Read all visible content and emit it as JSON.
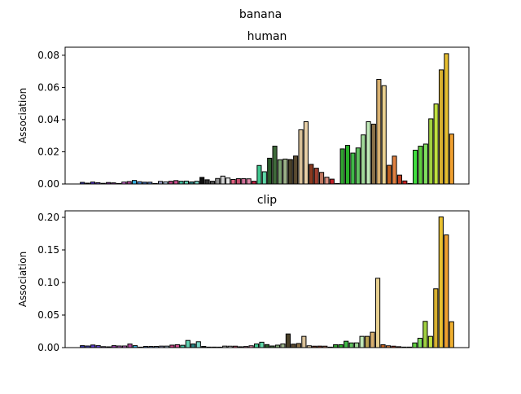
{
  "figure_title": "banana",
  "chart_data": [
    {
      "type": "bar",
      "title": "human",
      "xlabel": "",
      "ylabel": "Association",
      "ylim": [
        0,
        0.085
      ],
      "yticks": [
        0.0,
        0.02,
        0.04,
        0.06,
        0.08
      ],
      "ytick_labels": [
        "0.00",
        "0.02",
        "0.04",
        "0.06",
        "0.08"
      ],
      "x_tick_labels_visible": false,
      "values": [
        0.001,
        0.0005,
        0.0012,
        0.0008,
        0.0004,
        0.0009,
        0.0007,
        0.0003,
        0.0012,
        0.0015,
        0.0022,
        0.0014,
        0.0011,
        0.0011,
        0.0003,
        0.0016,
        0.0013,
        0.0017,
        0.0021,
        0.0017,
        0.0018,
        0.0013,
        0.0017,
        0.0041,
        0.0026,
        0.0017,
        0.0034,
        0.0049,
        0.0037,
        0.0028,
        0.0033,
        0.0033,
        0.0032,
        0.0017,
        0.0115,
        0.0076,
        0.016,
        0.0235,
        0.0151,
        0.0155,
        0.0152,
        0.0174,
        0.0337,
        0.0387,
        0.0122,
        0.0098,
        0.0072,
        0.0042,
        0.003,
        0.0,
        0.0218,
        0.024,
        0.0192,
        0.0224,
        0.0305,
        0.0387,
        0.0372,
        0.065,
        0.0611,
        0.0116,
        0.0173,
        0.0055,
        0.0019,
        0.0,
        0.021,
        0.0235,
        0.0248,
        0.0405,
        0.0497,
        0.0709,
        0.081,
        0.031
      ],
      "colors": [
        "#3a3ab5",
        "#4a4ac8",
        "#5a3bd0",
        "#6c4ad8",
        "#9a5bd9",
        "#7a2b9a",
        "#a040b0",
        "#c060c8",
        "#d070d8",
        "#b04898",
        "#38b4e6",
        "#4c8fdc",
        "#3f6fb8",
        "#5a7ec4",
        "#7aa0d4",
        "#9aa0c8",
        "#b8d0e8",
        "#c04080",
        "#d05090",
        "#40c0a0",
        "#60d0b0",
        "#2a8080",
        "#7ad8c8",
        "#101010",
        "#303030",
        "#505050",
        "#909090",
        "#d0d0d0",
        "#e8e8e8",
        "#e06080",
        "#c85070",
        "#d07098",
        "#e088a8",
        "#c02040",
        "#40c890",
        "#60d8a8",
        "#2a5a2a",
        "#3e6a3a",
        "#7aa070",
        "#9ab088",
        "#4a4028",
        "#5a4a30",
        "#d8c098",
        "#e8d0a8",
        "#8a3a20",
        "#a04030",
        "#c07860",
        "#d89080",
        "#c02028",
        "#d04850",
        "#30a030",
        "#28b028",
        "#40b848",
        "#60c060",
        "#a0d898",
        "#c0e8b8",
        "#8a7048",
        "#d8b070",
        "#e8d090",
        "#c06020",
        "#e08040",
        "#c04020",
        "#d02020",
        "#e05050",
        "#40e040",
        "#60d040",
        "#80e060",
        "#a0d040",
        "#c0e040",
        "#d8b030",
        "#e8c030",
        "#f0a030"
      ]
    },
    {
      "type": "bar",
      "title": "clip",
      "xlabel": "",
      "ylabel": "Association",
      "ylim": [
        0,
        0.21
      ],
      "yticks": [
        0.0,
        0.05,
        0.1,
        0.15,
        0.2
      ],
      "ytick_labels": [
        "0.00",
        "0.05",
        "0.10",
        "0.15",
        "0.20"
      ],
      "x_tick_labels_visible": false,
      "values": [
        0.003,
        0.0025,
        0.004,
        0.003,
        0.0015,
        0.0012,
        0.003,
        0.0025,
        0.0025,
        0.0055,
        0.003,
        0.0006,
        0.0018,
        0.0018,
        0.0018,
        0.0023,
        0.0023,
        0.0038,
        0.0045,
        0.0036,
        0.011,
        0.0056,
        0.009,
        0.0018,
        0.0008,
        0.0008,
        0.0006,
        0.0023,
        0.0022,
        0.0022,
        0.0013,
        0.0017,
        0.0028,
        0.0056,
        0.0083,
        0.0046,
        0.0025,
        0.0038,
        0.0056,
        0.021,
        0.0053,
        0.0063,
        0.0173,
        0.0028,
        0.0022,
        0.0023,
        0.0022,
        0.0006,
        0.0045,
        0.0045,
        0.0098,
        0.0072,
        0.0073,
        0.0173,
        0.0173,
        0.0236,
        0.1065,
        0.0044,
        0.0028,
        0.0022,
        0.0014,
        0.0008,
        0.0008,
        0.0072,
        0.0144,
        0.0403,
        0.0173,
        0.0903,
        0.2007,
        0.173,
        0.0397
      ],
      "colors": [
        "#3a3ab5",
        "#4a4ac8",
        "#5a3bd0",
        "#6c4ad8",
        "#9a5bd9",
        "#7a2b9a",
        "#a040b0",
        "#c060c8",
        "#d070d8",
        "#b04898",
        "#38b4e6",
        "#4c8fdc",
        "#3f6fb8",
        "#5a7ec4",
        "#7aa0d4",
        "#9aa0c8",
        "#b8d0e8",
        "#c04080",
        "#d05090",
        "#40c0a0",
        "#60d0b0",
        "#2a8080",
        "#7ad8c8",
        "#101010",
        "#303030",
        "#505050",
        "#909090",
        "#d0d0d0",
        "#e8e8e8",
        "#e06080",
        "#c85070",
        "#d07098",
        "#e088a8",
        "#40c890",
        "#60d8a8",
        "#2a5a2a",
        "#3e6a3a",
        "#7aa070",
        "#9ab088",
        "#4a4028",
        "#5a4a30",
        "#8a7048",
        "#d8c098",
        "#e8d0a8",
        "#8a3a20",
        "#a04030",
        "#c07860",
        "#d89080",
        "#30a030",
        "#28b028",
        "#40b848",
        "#60c060",
        "#a0d898",
        "#c0e8b8",
        "#b8a050",
        "#d8b070",
        "#e8d090",
        "#c06020",
        "#e08040",
        "#c04020",
        "#d02020",
        "#e05050",
        "#40e040",
        "#60d040",
        "#80e060",
        "#a0d040",
        "#c0e040",
        "#d8b030",
        "#e8c030",
        "#f0a030",
        "#f0b030"
      ]
    }
  ]
}
